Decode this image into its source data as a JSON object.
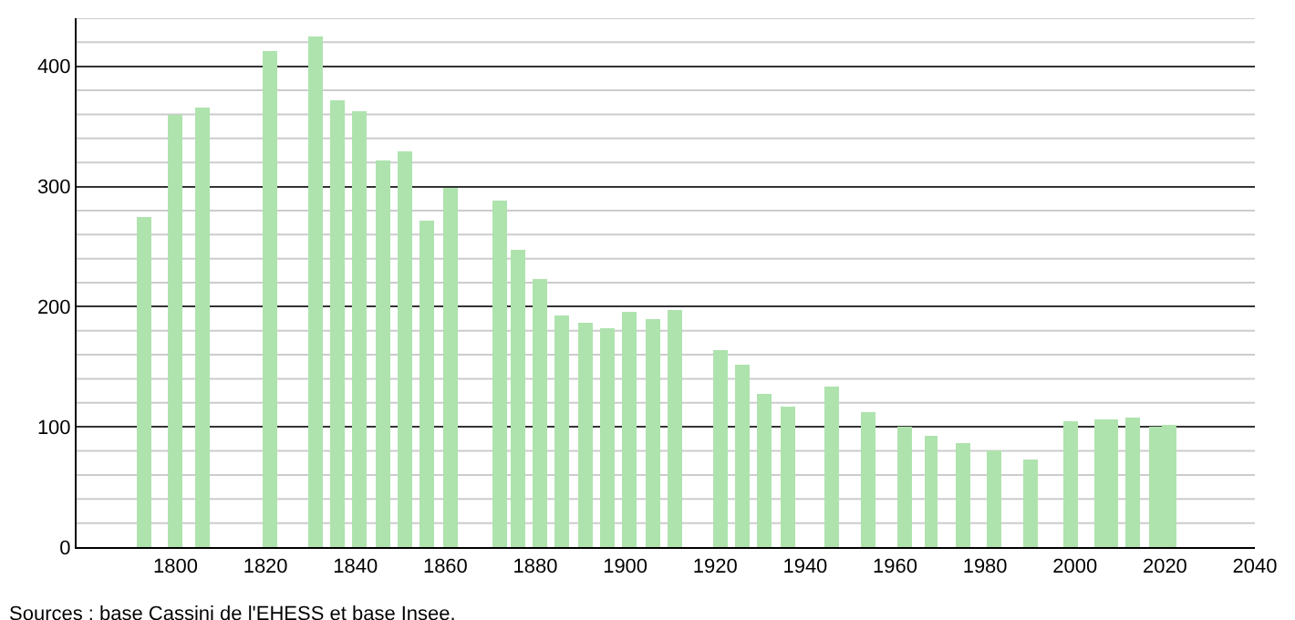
{
  "chart_data": {
    "type": "bar",
    "x": [
      1793,
      1800,
      1806,
      1821,
      1831,
      1836,
      1841,
      1846,
      1851,
      1856,
      1861,
      1872,
      1876,
      1881,
      1886,
      1891,
      1896,
      1901,
      1906,
      1911,
      1921,
      1926,
      1931,
      1936,
      1946,
      1954,
      1962,
      1968,
      1975,
      1982,
      1990,
      1999,
      2006,
      2008,
      2013,
      2018,
      2021
    ],
    "values": [
      275,
      360,
      366,
      413,
      425,
      371,
      363,
      322,
      330,
      271,
      299,
      288,
      248,
      223,
      193,
      187,
      182,
      195,
      190,
      198,
      164,
      152,
      128,
      117,
      133,
      113,
      100,
      92,
      87,
      80,
      73,
      105,
      106,
      106,
      108,
      100,
      101
    ],
    "color": "#aee3ae",
    "xlim": [
      1778,
      2040
    ],
    "xticks": [
      1800,
      1820,
      1840,
      1860,
      1880,
      1900,
      1920,
      1940,
      1960,
      1980,
      2000,
      2020,
      2040
    ],
    "ylim": [
      0,
      440
    ],
    "yticks": [
      0,
      100,
      200,
      300,
      400
    ],
    "grid": "y",
    "annotations": [
      "Sources : base Cassini de l'EHESS et base Insee."
    ]
  }
}
